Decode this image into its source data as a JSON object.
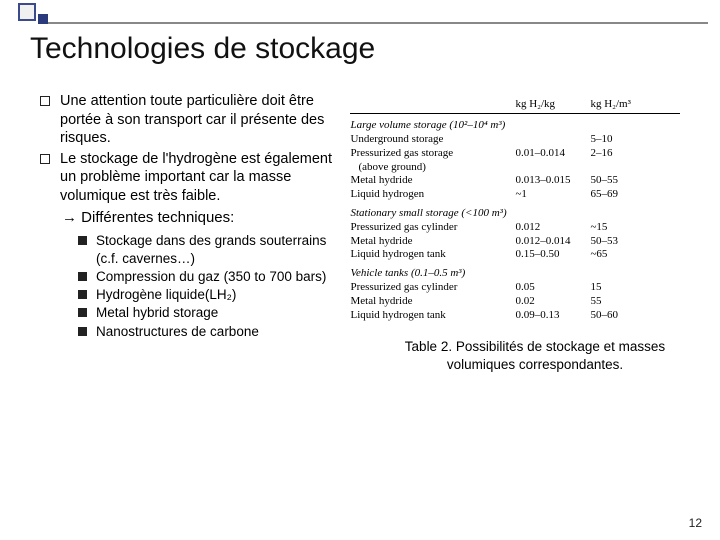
{
  "heading": "Technologies de stockage",
  "bullets": [
    "Une attention toute particulière doit être portée à son transport car il présente des risques.",
    "Le stockage de l'hydrogène est également un problème important car la masse volumique est très faible."
  ],
  "arrowline": "→ Différentes techniques:",
  "subbullets": [
    "Stockage dans des grands souterrains (c.f. cavernes…)",
    "Compression du gaz (350 to 700 bars)",
    "Hydrogène liquide(LH₂)",
    "Metal hybrid storage",
    "Nanostructures de carbone"
  ],
  "table": {
    "headers": {
      "c1": "kg H₂/kg",
      "c2": "kg H₂/m³"
    },
    "section1": {
      "title": "Large volume storage (10²–10⁴ m³)",
      "rows": [
        {
          "label": "Underground storage",
          "c1": "",
          "c2": "5–10"
        },
        {
          "label": "Pressurized gas storage",
          "c1": "0.01–0.014",
          "c2": "2–16"
        },
        {
          "label_indent": "(above ground)",
          "c1": "",
          "c2": ""
        },
        {
          "label": "Metal hydride",
          "c1": "0.013–0.015",
          "c2": "50–55"
        },
        {
          "label": "Liquid hydrogen",
          "c1": "~1",
          "c2": "65–69"
        }
      ]
    },
    "section2": {
      "title": "Stationary small storage (<100 m³)",
      "rows": [
        {
          "label": "Pressurized gas cylinder",
          "c1": "0.012",
          "c2": "~15"
        },
        {
          "label": "Metal hydride",
          "c1": "0.012–0.014",
          "c2": "50–53"
        },
        {
          "label": "Liquid hydrogen tank",
          "c1": "0.15–0.50",
          "c2": "~65"
        }
      ]
    },
    "section3": {
      "title": "Vehicle tanks (0.1–0.5 m³)",
      "rows": [
        {
          "label": "Pressurized gas cylinder",
          "c1": "0.05",
          "c2": "15"
        },
        {
          "label": "Metal hydride",
          "c1": "0.02",
          "c2": "55"
        },
        {
          "label": "Liquid hydrogen tank",
          "c1": "0.09–0.13",
          "c2": "50–60"
        }
      ]
    }
  },
  "caption": "Table 2. Possibilités de stockage et masses volumiques correspondantes.",
  "page": "12"
}
